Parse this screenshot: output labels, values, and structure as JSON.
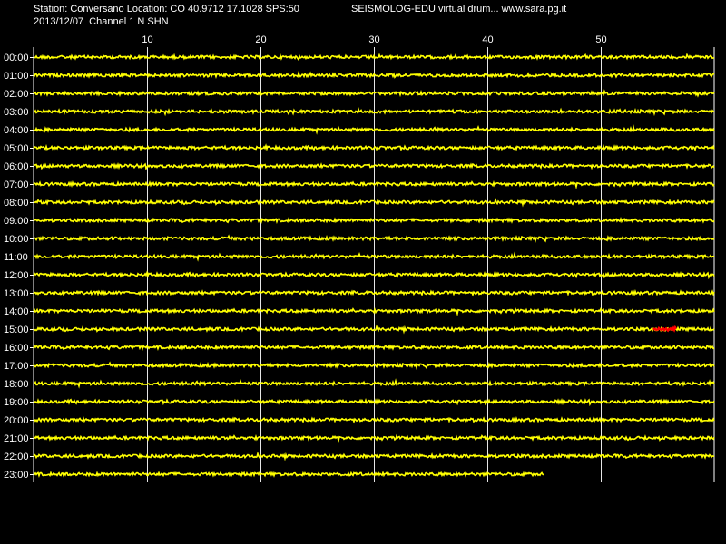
{
  "header": {
    "station_line": "Station: Conversano Location: CO 40.9712 17.1028 SPS:50",
    "app_line": "SEISMOLOG-EDU virtual drum... www.sara.pg.it",
    "date_line": "2013/12/07  Channel 1 N SHN"
  },
  "colors": {
    "background": "#000000",
    "trace": "#ffff00",
    "event": "#ff0000",
    "grid": "#ffffff",
    "text": "#ffffff"
  },
  "chart_data": {
    "type": "line",
    "title": "",
    "xlabel": "",
    "ylabel": "",
    "xlim": [
      0,
      60
    ],
    "x_ticks": [
      10,
      20,
      30,
      40,
      50
    ],
    "rows": [
      "00:00",
      "01:00",
      "02:00",
      "03:00",
      "04:00",
      "05:00",
      "06:00",
      "07:00",
      "08:00",
      "09:00",
      "10:00",
      "11:00",
      "12:00",
      "13:00",
      "14:00",
      "15:00",
      "16:00",
      "17:00",
      "18:00",
      "19:00",
      "20:00",
      "21:00",
      "22:00",
      "23:00"
    ],
    "row_end_minutes": [
      60,
      60,
      60,
      60,
      60,
      60,
      60,
      60,
      60,
      60,
      60,
      60,
      60,
      60,
      60,
      60,
      60,
      60,
      60,
      60,
      60,
      60,
      60,
      45
    ],
    "events": [
      {
        "row": "15:00",
        "x_start": 54.6,
        "x_end": 56.6
      }
    ],
    "grid": true
  }
}
